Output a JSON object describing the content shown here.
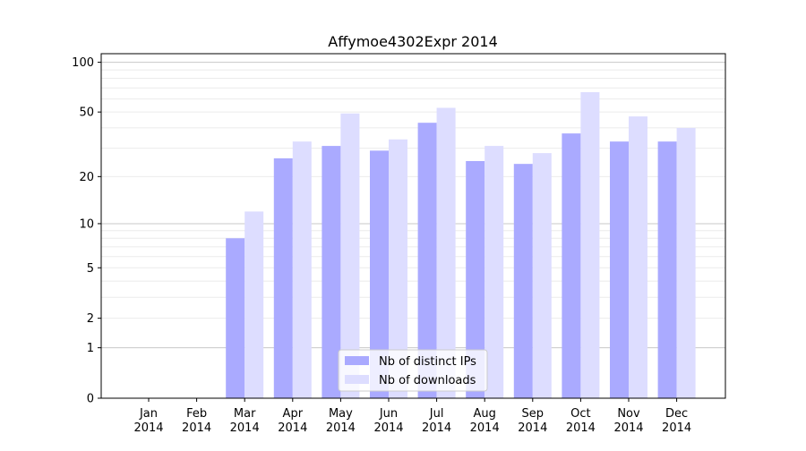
{
  "chart_data": {
    "type": "bar",
    "title": "Affymoe4302Expr 2014",
    "xlabel": "",
    "ylabel": "",
    "yscale": "log(1+y)",
    "ylim": [
      0,
      100
    ],
    "yticks": [
      0,
      1,
      2,
      5,
      10,
      20,
      50,
      100
    ],
    "grid": true,
    "legend_position": "bottom-center",
    "categories": [
      [
        "Jan",
        "2014"
      ],
      [
        "Feb",
        "2014"
      ],
      [
        "Mar",
        "2014"
      ],
      [
        "Apr",
        "2014"
      ],
      [
        "May",
        "2014"
      ],
      [
        "Jun",
        "2014"
      ],
      [
        "Jul",
        "2014"
      ],
      [
        "Aug",
        "2014"
      ],
      [
        "Sep",
        "2014"
      ],
      [
        "Oct",
        "2014"
      ],
      [
        "Nov",
        "2014"
      ],
      [
        "Dec",
        "2014"
      ]
    ],
    "series": [
      {
        "name": "Nb of distinct IPs",
        "color": "#aaaaff",
        "values": [
          0,
          0,
          8,
          26,
          31,
          29,
          43,
          25,
          24,
          37,
          33,
          33
        ]
      },
      {
        "name": "Nb of downloads",
        "color": "#ddddff",
        "values": [
          0,
          0,
          12,
          33,
          49,
          34,
          53,
          31,
          28,
          66,
          47,
          40
        ]
      }
    ]
  }
}
